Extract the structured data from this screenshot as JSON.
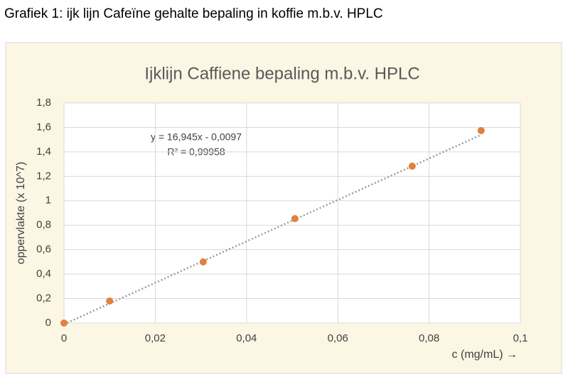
{
  "caption": "Grafiek 1: ijk lijn Cafeïne gehalte bepaling in koffie m.b.v. HPLC",
  "chart_data": {
    "type": "scatter",
    "title": "Ijklijn Caffiene bepaling m.b.v. HPLC",
    "x_label": "c (mg/mL) →",
    "y_label": "oppervlakte (x 10^7)",
    "x": [
      0,
      0.01,
      0.0305,
      0.0506,
      0.0763,
      0.0914
    ],
    "values": [
      0,
      0.18,
      0.5,
      0.854,
      1.283,
      1.574
    ],
    "color": "#e0813f",
    "xlim": [
      0,
      0.1
    ],
    "ylim": [
      0,
      1.8
    ],
    "xticks": [
      0,
      {
        "value": 0.02,
        "label": "0,02"
      },
      {
        "value": 0.04,
        "label": "0,04"
      },
      {
        "value": 0.06,
        "label": "0,06"
      },
      {
        "value": 0.08,
        "label": "0,08"
      },
      {
        "value": 0.1,
        "label": "0,1"
      }
    ],
    "yticks": [
      0,
      {
        "value": 0.2,
        "label": "0,2"
      },
      {
        "value": 0.4,
        "label": "0,4"
      },
      {
        "value": 0.6,
        "label": "0,6"
      },
      {
        "value": 0.8,
        "label": "0,8"
      },
      1,
      {
        "value": 1.2,
        "label": "1,2"
      },
      {
        "value": 1.4,
        "label": "1,4"
      },
      {
        "value": 1.6,
        "label": "1,6"
      },
      {
        "value": 1.8,
        "label": "1,8"
      }
    ],
    "grid": true,
    "trendline": {
      "slope": 16.945,
      "intercept": -0.0097,
      "color": "#9a9a9a",
      "equation": "y = 16,945x - 0,0097",
      "r_squared": "R² = 0,99958"
    }
  }
}
